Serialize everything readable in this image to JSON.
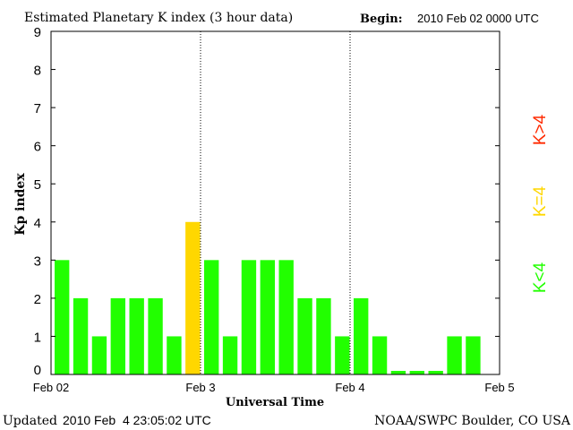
{
  "chart_data": {
    "type": "bar",
    "title": "Estimated Planetary K index (3 hour data)",
    "begin_label": "Begin:",
    "begin_value": "2010 Feb 02 0000 UTC",
    "xlabel": "Universal Time",
    "ylabel": "Kp index",
    "ylim": [
      0,
      9
    ],
    "yticks": [
      "0",
      "1",
      "2",
      "3",
      "4",
      "5",
      "6",
      "7",
      "8",
      "9"
    ],
    "xticks": [
      "Feb 02",
      "Feb 3",
      "Feb 4",
      "Feb 5"
    ],
    "slots_per_day": 8,
    "days": 3,
    "values": [
      3,
      2,
      1,
      2,
      2,
      2,
      1,
      4,
      3,
      1,
      3,
      3,
      3,
      2,
      2,
      1,
      2,
      1,
      0,
      0,
      0,
      1,
      1,
      null
    ],
    "color_thresholds": {
      "below": "#22ff00",
      "equal": "#ffd700",
      "above": "#ff2a00"
    },
    "legend": [
      {
        "label": "K<4",
        "color": "#22ff00"
      },
      {
        "label": "K=4",
        "color": "#ffd700"
      },
      {
        "label": "K>4",
        "color": "#ff2a00"
      }
    ],
    "legend_placement": "right",
    "grid": "dotted day separators"
  },
  "footer": {
    "updated_label": "Updated",
    "updated_value": "2010 Feb  4 23:05:02 UTC",
    "credit": "NOAA/SWPC Boulder, CO USA"
  }
}
